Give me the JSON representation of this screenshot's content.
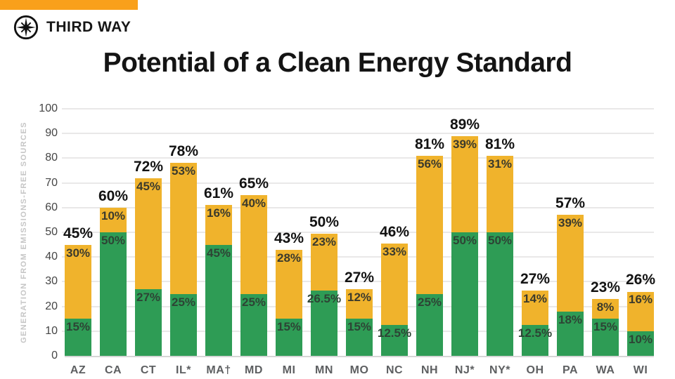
{
  "brand": {
    "name": "THIRD WAY",
    "logo_icon": "compass-star-icon",
    "accent_bar_color": "#F9A01B"
  },
  "title": "Potential of a Clean Energy Standard",
  "chart_data": {
    "type": "bar",
    "stacked": true,
    "title": "Potential of a Clean Energy Standard",
    "xlabel": "",
    "ylabel": "GENERATION FROM EMISSIONS-FREE SOURCES",
    "ylim": [
      0,
      100
    ],
    "yticks": [
      0,
      10,
      20,
      30,
      40,
      50,
      60,
      70,
      80,
      90,
      100
    ],
    "grid": true,
    "legend": false,
    "colors": {
      "green_segment": "#2E9C55",
      "yellow_segment": "#F0B32C"
    },
    "categories": [
      "AZ",
      "CA",
      "CT",
      "IL*",
      "MA†",
      "MD",
      "MI",
      "MN",
      "MO",
      "NC",
      "NH",
      "NJ*",
      "NY*",
      "OH",
      "PA",
      "WA",
      "WI"
    ],
    "series": [
      {
        "name": "green-segment",
        "values": [
          15,
          50,
          27,
          25,
          45,
          25,
          15,
          26.5,
          15,
          12.5,
          25,
          50,
          50,
          12.5,
          18,
          15,
          10
        ]
      },
      {
        "name": "yellow-segment",
        "values": [
          30,
          10,
          45,
          53,
          16,
          40,
          28,
          23,
          12,
          33,
          56,
          39,
          31,
          14,
          39,
          8,
          16
        ]
      }
    ],
    "bars": [
      {
        "state": "AZ",
        "green": 15,
        "yellow": 30,
        "green_label": "15%",
        "yellow_label": "30%",
        "total_label": "45%"
      },
      {
        "state": "CA",
        "green": 50,
        "yellow": 10,
        "green_label": "50%",
        "yellow_label": "10%",
        "total_label": "60%"
      },
      {
        "state": "CT",
        "green": 27,
        "yellow": 45,
        "green_label": "27%",
        "yellow_label": "45%",
        "total_label": "72%"
      },
      {
        "state": "IL*",
        "green": 25,
        "yellow": 53,
        "green_label": "25%",
        "yellow_label": "53%",
        "total_label": "78%"
      },
      {
        "state": "MA†",
        "green": 45,
        "yellow": 16,
        "green_label": "45%",
        "yellow_label": "16%",
        "total_label": "61%"
      },
      {
        "state": "MD",
        "green": 25,
        "yellow": 40,
        "green_label": "25%",
        "yellow_label": "40%",
        "total_label": "65%"
      },
      {
        "state": "MI",
        "green": 15,
        "yellow": 28,
        "green_label": "15%",
        "yellow_label": "28%",
        "total_label": "43%"
      },
      {
        "state": "MN",
        "green": 26.5,
        "yellow": 23,
        "green_label": "26.5%",
        "yellow_label": "23%",
        "total_label": "50%"
      },
      {
        "state": "MO",
        "green": 15,
        "yellow": 12,
        "green_label": "15%",
        "yellow_label": "12%",
        "total_label": "27%"
      },
      {
        "state": "NC",
        "green": 12.5,
        "yellow": 33,
        "green_label": "12.5%",
        "yellow_label": "33%",
        "total_label": "46%"
      },
      {
        "state": "NH",
        "green": 25,
        "yellow": 56,
        "green_label": "25%",
        "yellow_label": "56%",
        "total_label": "81%"
      },
      {
        "state": "NJ*",
        "green": 50,
        "yellow": 39,
        "green_label": "50%",
        "yellow_label": "39%",
        "total_label": "89%"
      },
      {
        "state": "NY*",
        "green": 50,
        "yellow": 31,
        "green_label": "50%",
        "yellow_label": "31%",
        "total_label": "81%"
      },
      {
        "state": "OH",
        "green": 12.5,
        "yellow": 14,
        "green_label": "12.5%",
        "yellow_label": "14%",
        "total_label": "27%"
      },
      {
        "state": "PA",
        "green": 18,
        "yellow": 39,
        "green_label": "18%",
        "yellow_label": "39%",
        "total_label": "57%"
      },
      {
        "state": "WA",
        "green": 15,
        "yellow": 8,
        "green_label": "15%",
        "yellow_label": "8%",
        "total_label": "23%"
      },
      {
        "state": "WI",
        "green": 10,
        "yellow": 16,
        "green_label": "10%",
        "yellow_label": "16%",
        "total_label": "26%"
      }
    ]
  }
}
